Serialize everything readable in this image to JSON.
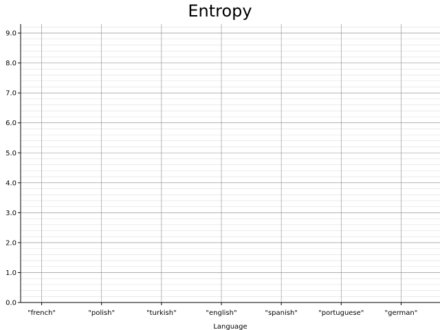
{
  "chart_data": {
    "type": "bar",
    "title": "Entropy",
    "xlabel": "Language",
    "ylabel": "",
    "categories": [
      "\"french\"",
      "\"polish\"",
      "\"turkish\"",
      "\"english\"",
      "\"spanish\"",
      "\"portuguese\"",
      "\"german\""
    ],
    "values": [
      0,
      0,
      0,
      0,
      0,
      0,
      0
    ],
    "ylim": [
      0,
      9.3
    ],
    "yticks": [
      "0.0",
      "1.0",
      "2.0",
      "3.0",
      "4.0",
      "5.0",
      "6.0",
      "7.0",
      "8.0",
      "9.0"
    ],
    "grid": true,
    "minor_grid": true,
    "colors": {
      "major_grid": "#888888",
      "minor_grid": "#dddddd",
      "axis": "#000000"
    }
  }
}
